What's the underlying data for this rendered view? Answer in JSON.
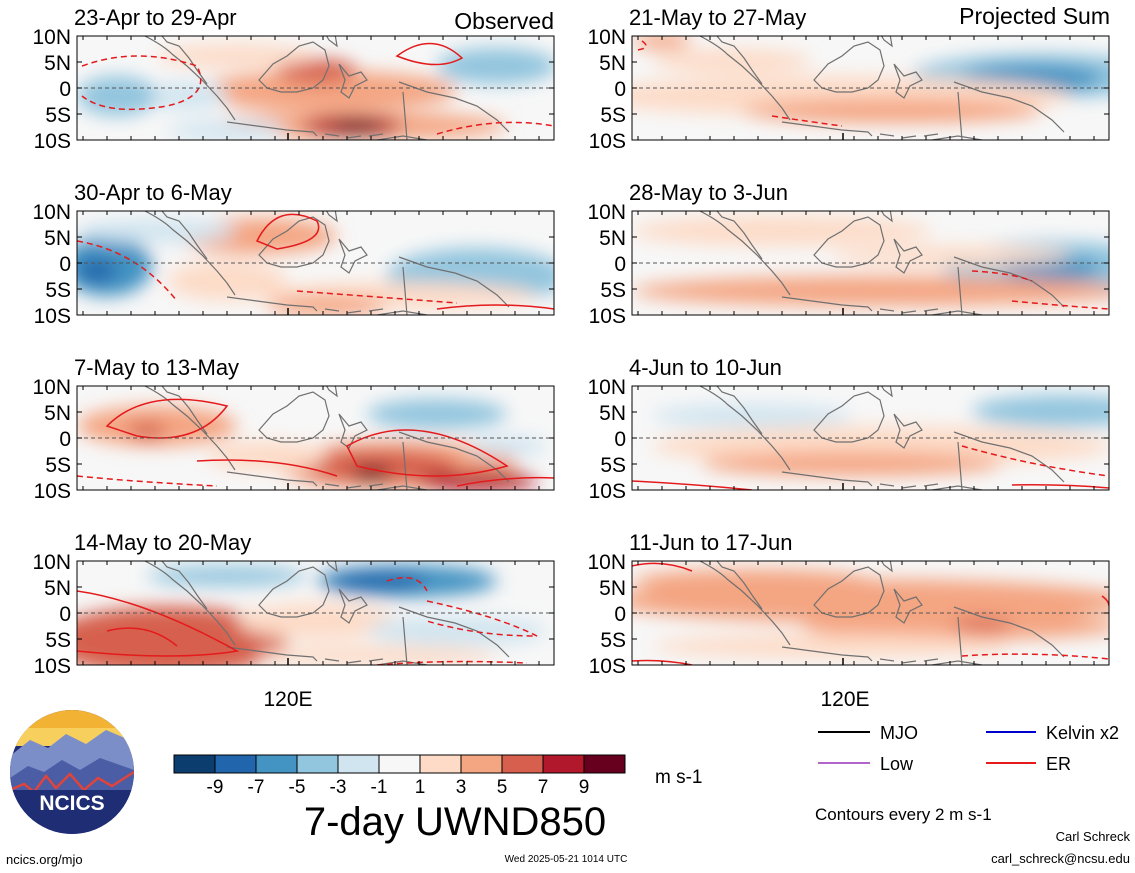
{
  "chart_data": {
    "type": "heatmap",
    "title": "7-day UWND850",
    "units": "m s-1",
    "x_tick_label": "120E",
    "y_tick_labels": [
      "10N",
      "5N",
      "0",
      "5S",
      "10S"
    ],
    "colorbar": {
      "ticks": [
        "-9",
        "-7",
        "-5",
        "-3",
        "-1",
        "1",
        "3",
        "5",
        "7",
        "9"
      ],
      "colors": [
        "#0b3d6e",
        "#2166ac",
        "#4393c3",
        "#92c5de",
        "#d1e5f0",
        "#f7f7f7",
        "#fddbc7",
        "#f4a582",
        "#d6604d",
        "#b2182b",
        "#67001f"
      ]
    },
    "columns": [
      "Observed",
      "Projected Sum"
    ],
    "panels": [
      {
        "label": "23-Apr to 29-Apr",
        "group": "Observed"
      },
      {
        "label": "30-Apr to 6-May",
        "group": "Observed"
      },
      {
        "label": "7-May to 13-May",
        "group": "Observed"
      },
      {
        "label": "14-May to 20-May",
        "group": "Observed"
      },
      {
        "label": "21-May to 27-May",
        "group": "Projected Sum"
      },
      {
        "label": "28-May to 3-Jun",
        "group": "Projected Sum"
      },
      {
        "label": "4-Jun to 10-Jun",
        "group": "Projected Sum"
      },
      {
        "label": "11-Jun to 17-Jun",
        "group": "Projected Sum"
      }
    ],
    "legend": {
      "placement": "bottom-right",
      "items": [
        {
          "name": "MJO",
          "color": "#000000"
        },
        {
          "name": "Kelvin x2",
          "color": "#0000cc"
        },
        {
          "name": "Low",
          "color": "#b266cc"
        },
        {
          "name": "ER",
          "color": "#e41a1c"
        }
      ]
    },
    "contour_note": "Contours every 2 m s-1"
  },
  "footer": {
    "logo_text": "NCICS",
    "site": "ncics.org/mjo",
    "timestamp": "Wed 2025-05-21 1014 UTC",
    "author": "Carl Schreck",
    "email": "carl_schreck@ncsu.edu"
  }
}
